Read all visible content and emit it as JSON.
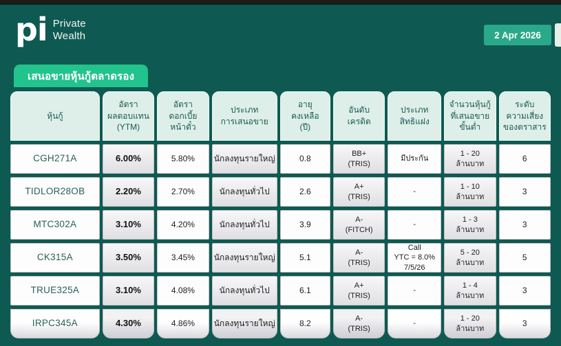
{
  "meta": {
    "date_badge": "2 Apr 2026"
  },
  "brand": {
    "logo": "pi",
    "line1": "Private",
    "line2": "Wealth"
  },
  "title_badge": "เสนอขายหุ้นกู้ตลาดรอง",
  "colors": {
    "background": "#0e5a52",
    "top_bar": "#1c1c19",
    "title_badge_green": "#22c38d",
    "date_badge_green": "#2aa88a",
    "header_cell_mint": "#ddefe8",
    "gray_cell": "#e3e3e7",
    "teal_text": "#1a5a52"
  },
  "table": {
    "headers": [
      {
        "key": "bond",
        "lines": [
          "หุ้นกู้"
        ]
      },
      {
        "key": "ytm",
        "lines": [
          "อัตรา",
          "ผลตอบแทน",
          "(YTM)"
        ]
      },
      {
        "key": "coupon",
        "lines": [
          "อัตรา",
          "ดอกเบี้ย",
          "หน้าตั๋ว"
        ]
      },
      {
        "key": "offer-type",
        "lines": [
          "ประเภท",
          "การเสนอขาย"
        ]
      },
      {
        "key": "tenor",
        "lines": [
          "อายุ",
          "คงเหลือ",
          "(ปี)"
        ]
      },
      {
        "key": "rating",
        "lines": [
          "อันดับ",
          "เครดิต"
        ]
      },
      {
        "key": "embedded-option",
        "lines": [
          "ประเภท",
          "สิทธิแฝง"
        ]
      },
      {
        "key": "min-amount",
        "lines": [
          "จำนวนหุ้นกู้",
          "ที่เสนอขาย",
          "ขั้นต่ำ"
        ]
      },
      {
        "key": "risk-level",
        "lines": [
          "ระดับ",
          "ความเสี่ยง",
          "ของตราสาร"
        ]
      }
    ],
    "rows": [
      {
        "bond": "CGH271A",
        "ytm": "6.00%",
        "coupon": "5.80%",
        "offer_type": "นักลงทุนรายใหญ่",
        "tenor": "0.8",
        "rating": [
          "BB+",
          "(TRIS)"
        ],
        "embedded_option": [
          "มีประกัน"
        ],
        "min_amount": [
          "1 - 20",
          "ล้านบาท"
        ],
        "risk": "6"
      },
      {
        "bond": "TIDLOR28OB",
        "ytm": "2.20%",
        "coupon": "2.70%",
        "offer_type": "นักลงทุนทั่วไป",
        "tenor": "2.6",
        "rating": [
          "A+",
          "(TRIS)"
        ],
        "embedded_option": [
          "-"
        ],
        "min_amount": [
          "1 - 10",
          "ล้านบาท"
        ],
        "risk": "3"
      },
      {
        "bond": "MTC302A",
        "ytm": "3.10%",
        "coupon": "4.20%",
        "offer_type": "นักลงทุนทั่วไป",
        "tenor": "3.9",
        "rating": [
          "A-",
          "(FITCH)"
        ],
        "embedded_option": [
          "-"
        ],
        "min_amount": [
          "1 - 3",
          "ล้านบาท"
        ],
        "risk": "3"
      },
      {
        "bond": "CK315A",
        "ytm": "3.50%",
        "coupon": "3.45%",
        "offer_type": "นักลงทุนรายใหญ่",
        "tenor": "5.1",
        "rating": [
          "A-",
          "(TRIS)"
        ],
        "embedded_option": [
          "Call",
          "YTC = 8.0%",
          "7/5/26"
        ],
        "min_amount": [
          "5 - 20",
          "ล้านบาท"
        ],
        "risk": "5"
      },
      {
        "bond": "TRUE325A",
        "ytm": "3.10%",
        "coupon": "4.08%",
        "offer_type": "นักลงทุนทั่วไป",
        "tenor": "6.1",
        "rating": [
          "A+",
          "(TRIS)"
        ],
        "embedded_option": [
          "-"
        ],
        "min_amount": [
          "1 - 4",
          "ล้านบาท"
        ],
        "risk": "3"
      },
      {
        "bond": "IRPC345A",
        "ytm": "4.30%",
        "coupon": "4.86%",
        "offer_type": "นักลงทุนรายใหญ่",
        "tenor": "8.2",
        "rating": [
          "A-",
          "(TRIS)"
        ],
        "embedded_option": [
          "-"
        ],
        "min_amount": [
          "1 - 20",
          "ล้านบาท"
        ],
        "risk": "3"
      }
    ]
  }
}
